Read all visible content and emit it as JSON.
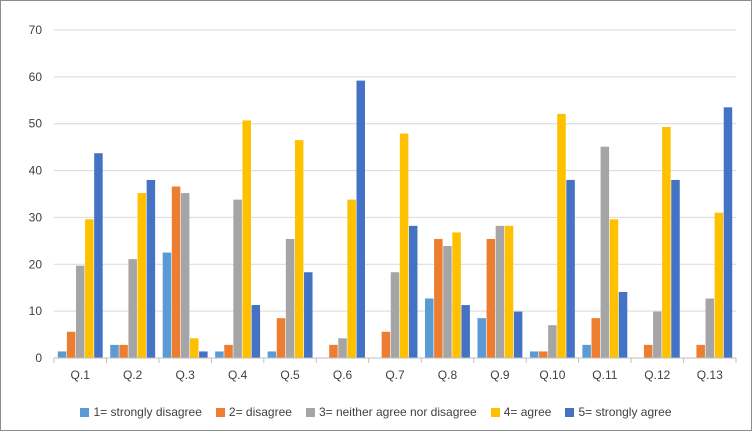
{
  "chart_data": {
    "type": "bar",
    "title": "",
    "xlabel": "",
    "ylabel": "",
    "ylim": [
      0,
      70
    ],
    "yticks": [
      0,
      10,
      20,
      30,
      40,
      50,
      60,
      70
    ],
    "grid": true,
    "legend_position": "bottom",
    "categories": [
      "Q.1",
      "Q.2",
      "Q.3",
      "Q.4",
      "Q.5",
      "Q.6",
      "Q.7",
      "Q.8",
      "Q.9",
      "Q.10",
      "Q.11",
      "Q.12",
      "Q.13"
    ],
    "series": [
      {
        "name": "1= strongly disagree",
        "color": "#5b9bd5",
        "values": [
          1.4,
          2.8,
          22.5,
          1.4,
          1.4,
          0,
          0,
          12.7,
          8.5,
          1.4,
          2.8,
          0,
          0
        ]
      },
      {
        "name": "2= disagree",
        "color": "#ed7d31",
        "values": [
          5.6,
          2.8,
          36.6,
          2.8,
          8.5,
          2.8,
          5.6,
          25.4,
          25.4,
          1.4,
          8.5,
          2.8,
          2.8
        ]
      },
      {
        "name": "3= neither agree nor disagree",
        "color": "#a5a5a5",
        "values": [
          19.7,
          21.1,
          35.2,
          33.8,
          25.4,
          4.2,
          18.3,
          23.9,
          28.2,
          7.0,
          45.1,
          9.9,
          12.7
        ]
      },
      {
        "name": "4= agree",
        "color": "#ffc000",
        "values": [
          29.6,
          35.2,
          4.2,
          50.7,
          46.5,
          33.8,
          47.9,
          26.8,
          28.2,
          52.1,
          29.6,
          49.3,
          31.0
        ]
      },
      {
        "name": "5= strongly agree",
        "color": "#4472c4",
        "values": [
          43.7,
          38.0,
          1.4,
          11.3,
          18.3,
          59.2,
          28.2,
          11.3,
          9.9,
          38.0,
          14.1,
          38.0,
          53.5
        ]
      }
    ]
  }
}
